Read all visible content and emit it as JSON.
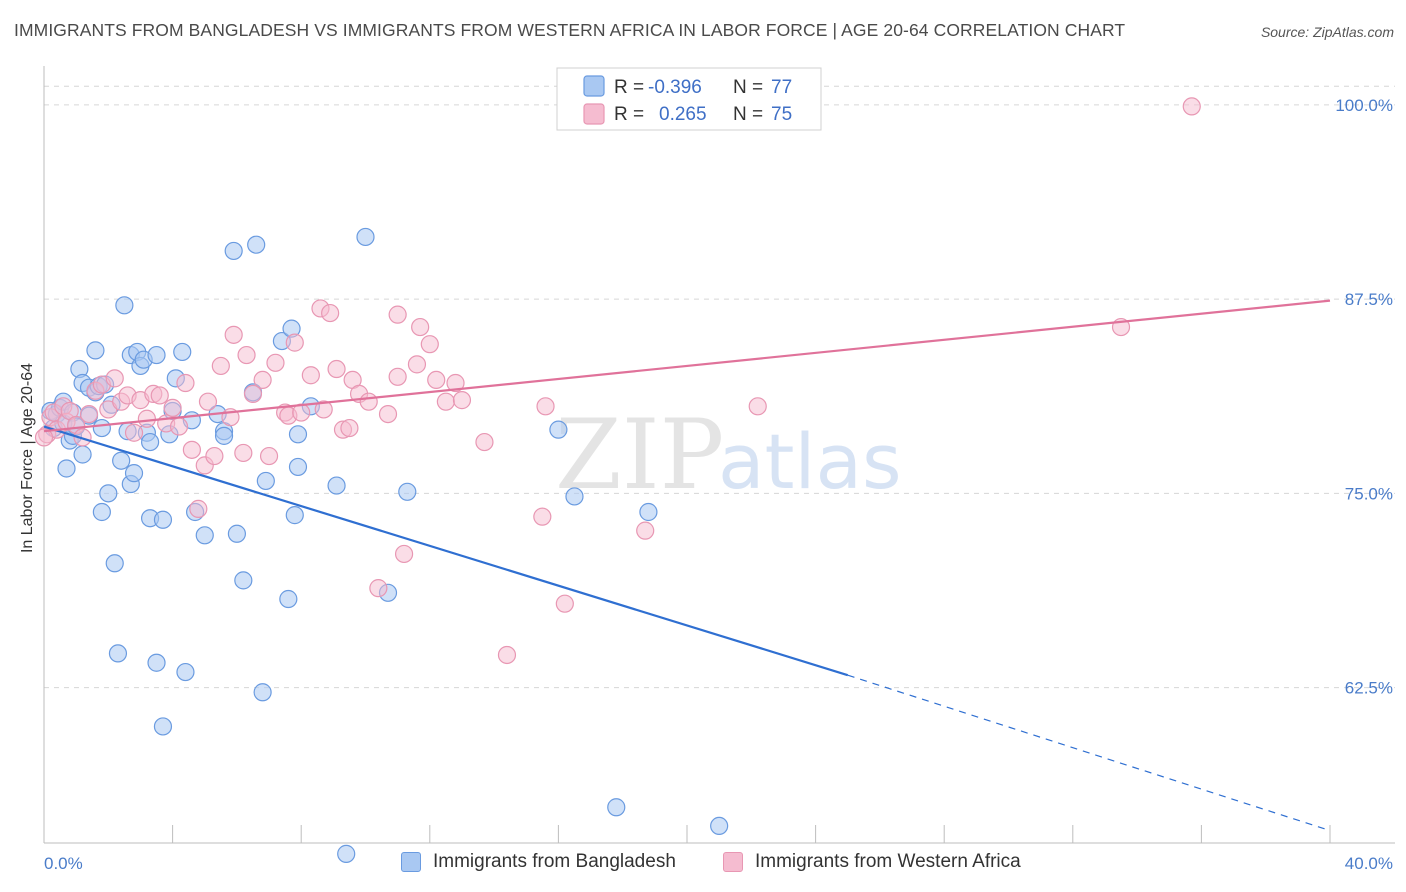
{
  "title": "IMMIGRANTS FROM BANGLADESH VS IMMIGRANTS FROM WESTERN AFRICA IN LABOR FORCE | AGE 20-64 CORRELATION CHART",
  "source": "Source: ZipAtlas.com",
  "watermark": {
    "zip": "ZIP",
    "atlas": "atlas"
  },
  "colors": {
    "blue_fill": "#a9c8f2",
    "blue_stroke": "#6a9be0",
    "blue_line": "#2f6fd1",
    "pink_fill": "#f5bcd0",
    "pink_stroke": "#e897b3",
    "pink_line": "#e0729a",
    "grid": "#d6d6d6",
    "axis_text": "#4a7cc9"
  },
  "legend": {
    "rows": [
      {
        "r_label": "R =",
        "r_value": "-0.396",
        "n_label": "N =",
        "n_value": "77"
      },
      {
        "r_label": "R =",
        "r_value": "0.265",
        "n_label": "N =",
        "n_value": "75"
      }
    ]
  },
  "bottom_legend": {
    "blue": "Immigrants from Bangladesh",
    "pink": "Immigrants from Western Africa"
  },
  "chart_data": {
    "type": "scatter",
    "title": "IMMIGRANTS FROM BANGLADESH VS IMMIGRANTS FROM WESTERN AFRICA IN LABOR FORCE | AGE 20-64 CORRELATION CHART",
    "xlabel": "",
    "ylabel": "In Labor Force | Age 20-64",
    "xlim": [
      0,
      40
    ],
    "ylim": [
      52.5,
      102.5
    ],
    "x_tick_labels": [
      "0.0%",
      "40.0%"
    ],
    "y_ticks": [
      62.5,
      75.0,
      87.5,
      100.0
    ],
    "y_tick_labels": [
      "62.5%",
      "75.0%",
      "87.5%",
      "100.0%"
    ],
    "grid": "horizontal dashed",
    "legend_position": "top-center",
    "series": [
      {
        "name": "Immigrants from Bangladesh",
        "color": "#a9c8f2",
        "trend": {
          "x": [
            0,
            25
          ],
          "y": [
            79.3,
            63.3
          ],
          "dashed_to": [
            40,
            53.3
          ]
        },
        "points": [
          [
            0.2,
            80.3
          ],
          [
            0.3,
            79.2
          ],
          [
            0.4,
            80.1
          ],
          [
            0.5,
            80.5
          ],
          [
            0.6,
            79.5
          ],
          [
            0.6,
            80.9
          ],
          [
            0.7,
            76.6
          ],
          [
            0.8,
            78.4
          ],
          [
            0.9,
            80.2
          ],
          [
            0.9,
            78.7
          ],
          [
            1.0,
            79.3
          ],
          [
            1.1,
            83.0
          ],
          [
            1.2,
            82.1
          ],
          [
            1.2,
            77.5
          ],
          [
            1.4,
            80.0
          ],
          [
            1.4,
            81.8
          ],
          [
            1.6,
            81.5
          ],
          [
            1.6,
            84.2
          ],
          [
            1.7,
            81.9
          ],
          [
            1.8,
            79.2
          ],
          [
            1.8,
            73.8
          ],
          [
            1.9,
            82.0
          ],
          [
            2.0,
            75.0
          ],
          [
            2.1,
            80.7
          ],
          [
            2.2,
            70.5
          ],
          [
            2.3,
            64.7
          ],
          [
            2.4,
            77.1
          ],
          [
            2.5,
            87.1
          ],
          [
            2.6,
            79.0
          ],
          [
            2.7,
            83.9
          ],
          [
            2.7,
            75.6
          ],
          [
            2.8,
            76.3
          ],
          [
            2.9,
            84.1
          ],
          [
            3.0,
            83.2
          ],
          [
            3.1,
            83.6
          ],
          [
            3.2,
            78.9
          ],
          [
            3.3,
            78.3
          ],
          [
            3.3,
            73.4
          ],
          [
            3.5,
            83.9
          ],
          [
            3.5,
            64.1
          ],
          [
            3.7,
            60.0
          ],
          [
            3.7,
            73.3
          ],
          [
            3.9,
            78.8
          ],
          [
            4.0,
            80.3
          ],
          [
            4.1,
            82.4
          ],
          [
            4.3,
            84.1
          ],
          [
            4.4,
            63.5
          ],
          [
            4.6,
            79.7
          ],
          [
            4.7,
            73.8
          ],
          [
            5.0,
            72.3
          ],
          [
            5.4,
            80.1
          ],
          [
            5.6,
            79.0
          ],
          [
            5.6,
            78.7
          ],
          [
            5.9,
            90.6
          ],
          [
            6.0,
            72.4
          ],
          [
            6.2,
            69.4
          ],
          [
            6.5,
            81.5
          ],
          [
            6.6,
            91.0
          ],
          [
            6.8,
            62.2
          ],
          [
            6.9,
            75.8
          ],
          [
            7.4,
            84.8
          ],
          [
            7.6,
            68.2
          ],
          [
            7.7,
            85.6
          ],
          [
            7.8,
            73.6
          ],
          [
            7.9,
            78.8
          ],
          [
            7.9,
            76.7
          ],
          [
            8.3,
            80.6
          ],
          [
            9.1,
            75.5
          ],
          [
            9.4,
            51.8
          ],
          [
            10.0,
            91.5
          ],
          [
            10.7,
            68.6
          ],
          [
            11.3,
            75.1
          ],
          [
            16.0,
            79.1
          ],
          [
            16.5,
            74.8
          ],
          [
            17.8,
            54.8
          ],
          [
            18.8,
            73.8
          ],
          [
            21.0,
            53.6
          ]
        ]
      },
      {
        "name": "Immigrants from Western Africa",
        "color": "#f5bcd0",
        "trend": {
          "x": [
            0,
            40
          ],
          "y": [
            79.0,
            87.4
          ]
        },
        "points": [
          [
            0.1,
            78.8
          ],
          [
            0.2,
            79.9
          ],
          [
            0.3,
            80.2
          ],
          [
            0.4,
            79.1
          ],
          [
            0.6,
            80.6
          ],
          [
            0.7,
            79.6
          ],
          [
            0.8,
            80.3
          ],
          [
            1.0,
            79.4
          ],
          [
            1.2,
            78.6
          ],
          [
            1.4,
            80.1
          ],
          [
            1.6,
            81.6
          ],
          [
            1.8,
            82.0
          ],
          [
            2.0,
            80.4
          ],
          [
            2.2,
            82.4
          ],
          [
            2.4,
            80.9
          ],
          [
            2.6,
            81.3
          ],
          [
            2.8,
            78.9
          ],
          [
            3.0,
            81.0
          ],
          [
            3.2,
            79.8
          ],
          [
            3.4,
            81.4
          ],
          [
            3.6,
            81.3
          ],
          [
            3.8,
            79.5
          ],
          [
            4.0,
            80.5
          ],
          [
            4.2,
            79.3
          ],
          [
            4.4,
            82.1
          ],
          [
            4.6,
            77.8
          ],
          [
            4.8,
            74.0
          ],
          [
            5.0,
            76.8
          ],
          [
            5.1,
            80.9
          ],
          [
            5.3,
            77.4
          ],
          [
            5.5,
            83.2
          ],
          [
            5.8,
            79.9
          ],
          [
            5.9,
            85.2
          ],
          [
            6.2,
            77.6
          ],
          [
            6.3,
            83.9
          ],
          [
            6.5,
            81.4
          ],
          [
            6.8,
            82.3
          ],
          [
            7.0,
            77.4
          ],
          [
            7.2,
            83.4
          ],
          [
            7.5,
            80.2
          ],
          [
            7.6,
            80.0
          ],
          [
            7.8,
            84.7
          ],
          [
            8.0,
            80.2
          ],
          [
            8.3,
            82.6
          ],
          [
            8.6,
            86.9
          ],
          [
            8.7,
            80.4
          ],
          [
            8.9,
            86.6
          ],
          [
            9.1,
            83.0
          ],
          [
            9.3,
            79.1
          ],
          [
            9.5,
            79.2
          ],
          [
            9.6,
            82.3
          ],
          [
            9.8,
            81.4
          ],
          [
            10.1,
            80.9
          ],
          [
            10.4,
            68.9
          ],
          [
            10.7,
            80.1
          ],
          [
            11.0,
            86.5
          ],
          [
            11.0,
            82.5
          ],
          [
            11.2,
            71.1
          ],
          [
            11.6,
            83.3
          ],
          [
            11.7,
            85.7
          ],
          [
            12.0,
            84.6
          ],
          [
            12.2,
            82.3
          ],
          [
            12.5,
            80.9
          ],
          [
            12.8,
            82.1
          ],
          [
            13.0,
            81.0
          ],
          [
            13.7,
            78.3
          ],
          [
            14.4,
            64.6
          ],
          [
            15.5,
            73.5
          ],
          [
            15.6,
            80.6
          ],
          [
            16.2,
            67.9
          ],
          [
            18.7,
            72.6
          ],
          [
            22.2,
            80.6
          ],
          [
            33.5,
            85.7
          ],
          [
            35.7,
            99.9
          ],
          [
            0.0,
            78.6
          ]
        ]
      }
    ]
  }
}
